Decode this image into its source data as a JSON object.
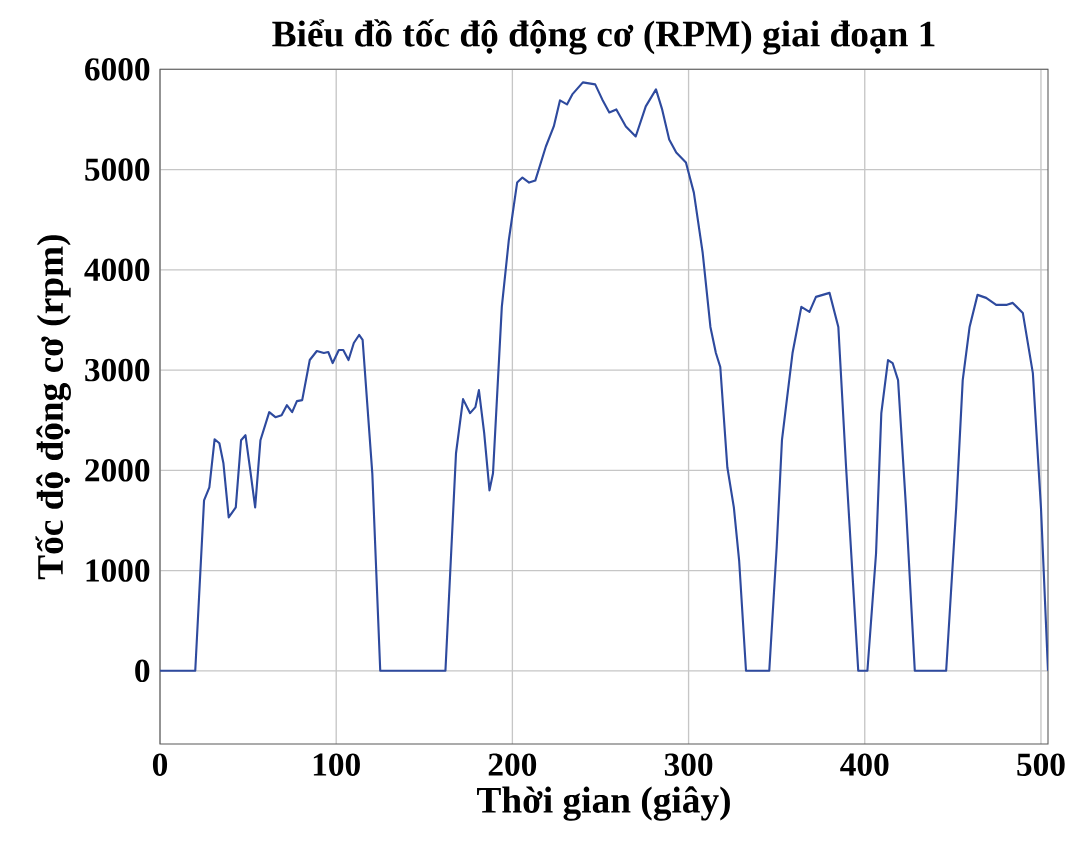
{
  "chart_data": {
    "type": "line",
    "title": "Biểu đồ tốc độ động cơ (RPM) giai đoạn 1",
    "xlabel": "Thời gian (giây)",
    "ylabel": "Tốc độ động cơ (rpm)",
    "xlim": [
      0,
      504
    ],
    "ylim": [
      -730,
      6000
    ],
    "xticks": [
      0,
      100,
      200,
      300,
      400,
      500
    ],
    "yticks": [
      0,
      1000,
      2000,
      3000,
      4000,
      5000,
      6000
    ],
    "grid": true,
    "line_style": "solid",
    "marker": "none",
    "series": [
      {
        "color": "#2e4a9e",
        "x": [
          0,
          20,
          25,
          28,
          31,
          33.7,
          36,
          39,
          43,
          46,
          48.5,
          51,
          54,
          57,
          62,
          65.5,
          69,
          72,
          75,
          77.7,
          80.7,
          85,
          89,
          93,
          95.5,
          98,
          101.5,
          104,
          107,
          110,
          113,
          115,
          120.5,
          125,
          162,
          168,
          172,
          176,
          179,
          181,
          184,
          187,
          189,
          194,
          198,
          202.7,
          205.7,
          209.5,
          213,
          219,
          223.5,
          227,
          231,
          234,
          240,
          247,
          251,
          255,
          259,
          264.4,
          270,
          275.7,
          281.5,
          285,
          289,
          293,
          298.5,
          303,
          308,
          312.4,
          315.5,
          318,
          322,
          325.7,
          328.7,
          332.6,
          345.8,
          350,
          353,
          359,
          364,
          368.6,
          372.3,
          380,
          385,
          389.4,
          396.3,
          401.5,
          406.4,
          409.4,
          413.2,
          415.8,
          418.9,
          423.4,
          428.4,
          446.2,
          451.9,
          455.6,
          459.5,
          464,
          468.9,
          474.6,
          480.3,
          484,
          489.7,
          495.4,
          500,
          504
        ],
        "values": [
          0,
          0,
          1700,
          1830,
          2310,
          2270,
          2070,
          1530,
          1630,
          2300,
          2350,
          2030,
          1630,
          2300,
          2580,
          2530,
          2550,
          2650,
          2580,
          2690,
          2700,
          3100,
          3190,
          3170,
          3180,
          3070,
          3200,
          3200,
          3100,
          3270,
          3350,
          3300,
          1970,
          0,
          0,
          2170,
          2710,
          2570,
          2630,
          2800,
          2370,
          1800,
          1970,
          3630,
          4300,
          4870,
          4920,
          4870,
          4890,
          5230,
          5430,
          5690,
          5650,
          5750,
          5870,
          5850,
          5700,
          5570,
          5600,
          5430,
          5330,
          5630,
          5800,
          5600,
          5300,
          5170,
          5070,
          4770,
          4170,
          3430,
          3170,
          3030,
          2030,
          1630,
          1100,
          0,
          0,
          1230,
          2300,
          3170,
          3630,
          3580,
          3730,
          3770,
          3430,
          2030,
          0,
          0,
          1170,
          2570,
          3100,
          3070,
          2900,
          1630,
          0,
          0,
          1630,
          2900,
          3430,
          3750,
          3720,
          3650,
          3650,
          3670,
          3570,
          2970,
          1630,
          0
        ]
      }
    ]
  }
}
